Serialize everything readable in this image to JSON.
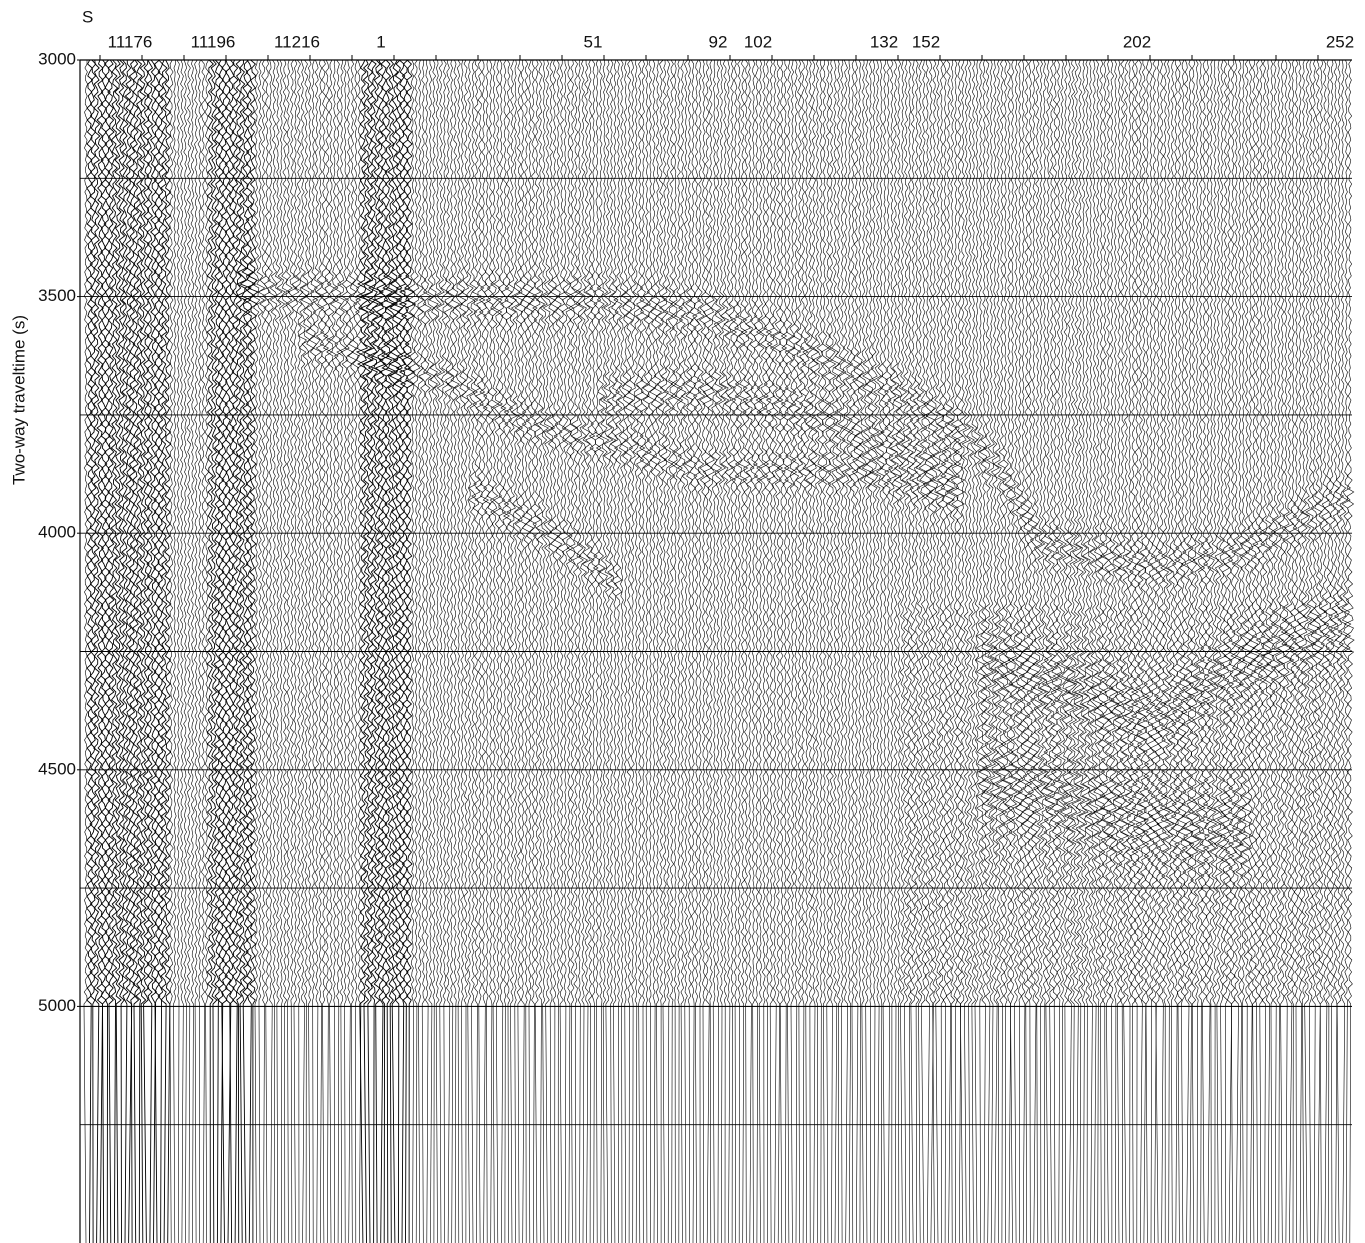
{
  "chart_data": {
    "type": "seismic",
    "direction_label": "S",
    "y_label": "Two-way traveltime (s)",
    "shot_points": [
      "11176",
      "11196",
      "11216",
      "1",
      "51",
      "92",
      "102",
      "132",
      "152",
      "202",
      "252"
    ],
    "ylim": [
      3000,
      5500
    ],
    "yticks": [
      3000,
      3500,
      4000,
      4500,
      5000
    ],
    "minor_grid": [
      3250,
      3750,
      4250,
      4750,
      5250
    ],
    "data_end": 5000,
    "grid": true,
    "color": "#000000"
  }
}
